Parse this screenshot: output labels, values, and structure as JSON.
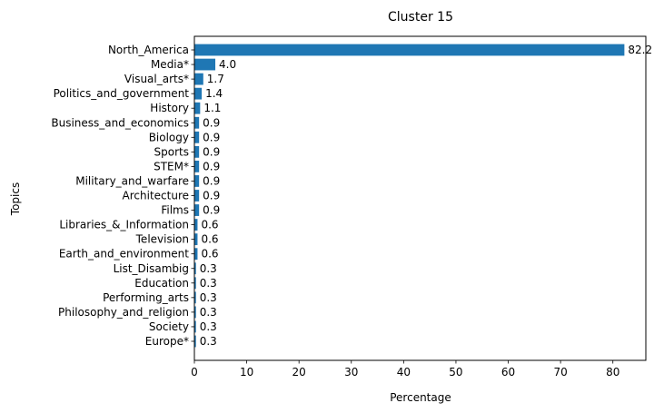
{
  "chart_data": {
    "type": "bar",
    "orientation": "horizontal",
    "title": "Cluster 15",
    "xlabel": "Percentage",
    "ylabel": "Topics",
    "xlim": [
      0,
      86.3
    ],
    "xticks": [
      0,
      10,
      20,
      30,
      40,
      50,
      60,
      70,
      80
    ],
    "grid": false,
    "legend": "none",
    "bar_color": "#1f77b4",
    "categories": [
      "North_America",
      "Media*",
      "Visual_arts*",
      "Politics_and_government",
      "History",
      "Business_and_economics",
      "Biology",
      "Sports",
      "STEM*",
      "Military_and_warfare",
      "Architecture",
      "Films",
      "Libraries_&_Information",
      "Television",
      "Earth_and_environment",
      "List_Disambig",
      "Education",
      "Performing_arts",
      "Philosophy_and_religion",
      "Society",
      "Europe*"
    ],
    "values": [
      82.2,
      4.0,
      1.7,
      1.4,
      1.1,
      0.9,
      0.9,
      0.9,
      0.9,
      0.9,
      0.9,
      0.9,
      0.6,
      0.6,
      0.6,
      0.3,
      0.3,
      0.3,
      0.3,
      0.3,
      0.3
    ],
    "value_labels": [
      "82.2",
      "4.0",
      "1.7",
      "1.4",
      "1.1",
      "0.9",
      "0.9",
      "0.9",
      "0.9",
      "0.9",
      "0.9",
      "0.9",
      "0.6",
      "0.6",
      "0.6",
      "0.3",
      "0.3",
      "0.3",
      "0.3",
      "0.3",
      "0.3"
    ]
  }
}
